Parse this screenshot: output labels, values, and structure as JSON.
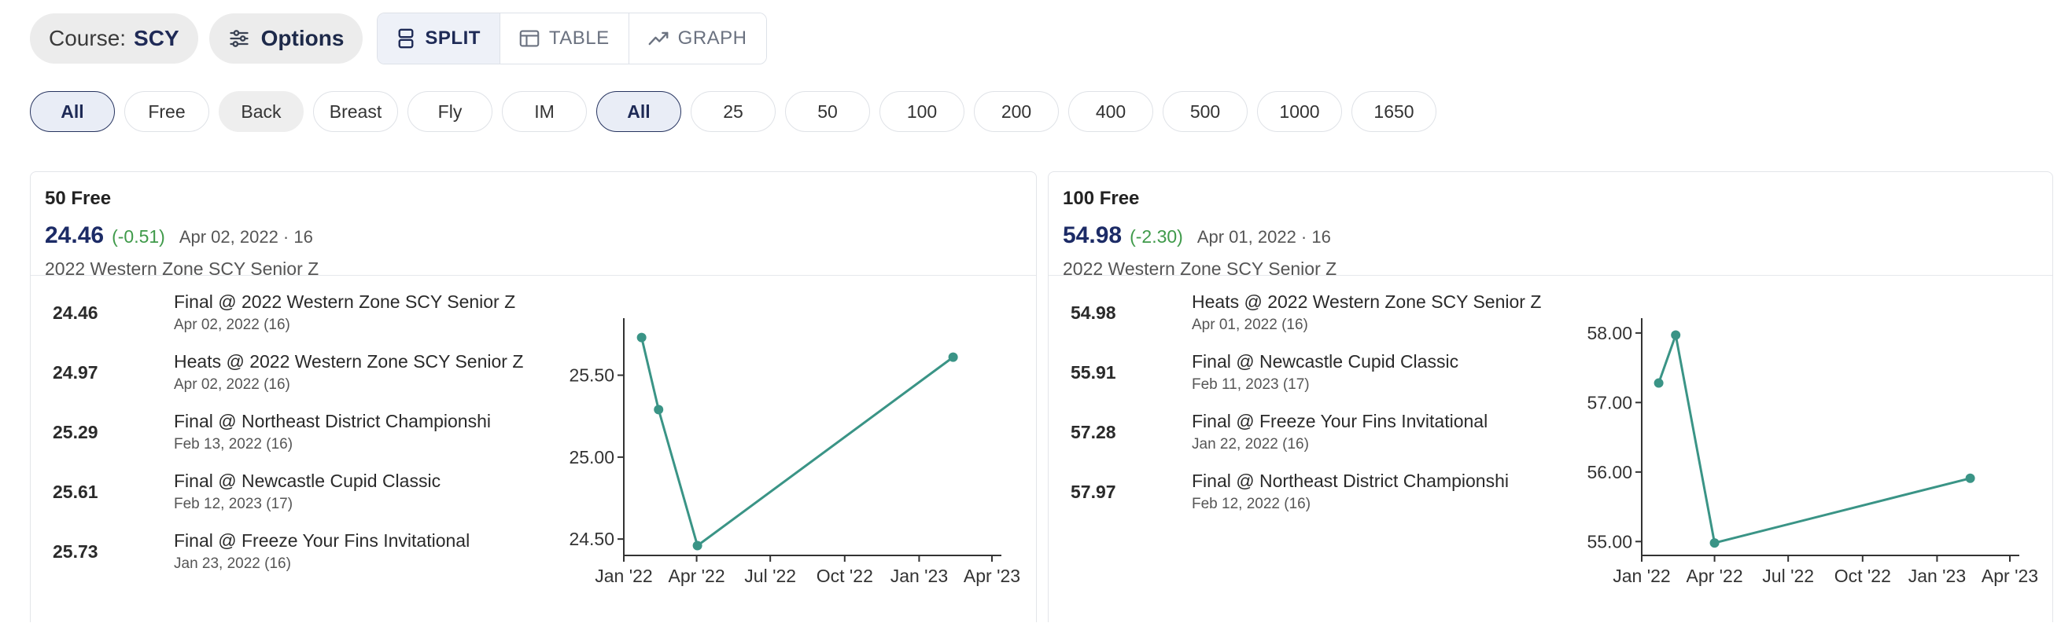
{
  "toolbar": {
    "course_prefix": "Course:",
    "course_value": "SCY",
    "options_label": "Options",
    "views": [
      {
        "label": "SPLIT",
        "icon": "split-view-icon",
        "active": true
      },
      {
        "label": "TABLE",
        "icon": "table-icon",
        "active": false
      },
      {
        "label": "GRAPH",
        "icon": "graph-icon",
        "active": false
      }
    ]
  },
  "stroke_filters": [
    {
      "label": "All",
      "active": true
    },
    {
      "label": "Free",
      "active": false
    },
    {
      "label": "Back",
      "active": false
    },
    {
      "label": "Breast",
      "active": false
    },
    {
      "label": "Fly",
      "active": false
    },
    {
      "label": "IM",
      "active": false
    }
  ],
  "distance_filters": [
    {
      "label": "All",
      "active": true
    },
    {
      "label": "25",
      "active": false
    },
    {
      "label": "50",
      "active": false
    },
    {
      "label": "100",
      "active": false
    },
    {
      "label": "200",
      "active": false
    },
    {
      "label": "400",
      "active": false
    },
    {
      "label": "500",
      "active": false
    },
    {
      "label": "1000",
      "active": false
    },
    {
      "label": "1650",
      "active": false
    }
  ],
  "cards": [
    {
      "event": "50 Free",
      "best_time": "24.46",
      "best_delta": "(-0.51)",
      "best_meta": "Apr 02, 2022 · 16",
      "best_meet": "2022 Western Zone SCY Senior Z",
      "swims": [
        {
          "time": "24.46",
          "event": "Final @ 2022 Western Zone SCY Senior Z",
          "date": "Apr 02, 2022 (16)"
        },
        {
          "time": "24.97",
          "event": "Heats @ 2022 Western Zone SCY Senior Z",
          "date": "Apr 02, 2022 (16)"
        },
        {
          "time": "25.29",
          "event": "Final @ Northeast District Championshi",
          "date": "Feb 13, 2022 (16)"
        },
        {
          "time": "25.61",
          "event": "Final @ Newcastle Cupid Classic",
          "date": "Feb 12, 2023 (17)"
        },
        {
          "time": "25.73",
          "event": "Final @ Freeze Your Fins Invitational",
          "date": "Jan 23, 2022 (16)"
        }
      ]
    },
    {
      "event": "100 Free",
      "best_time": "54.98",
      "best_delta": "(-2.30)",
      "best_meta": "Apr 01, 2022 · 16",
      "best_meet": "2022 Western Zone SCY Senior Z",
      "swims": [
        {
          "time": "54.98",
          "event": "Heats @ 2022 Western Zone SCY Senior Z",
          "date": "Apr 01, 2022 (16)"
        },
        {
          "time": "55.91",
          "event": "Final @ Newcastle Cupid Classic",
          "date": "Feb 11, 2023 (17)"
        },
        {
          "time": "57.28",
          "event": "Final @ Freeze Your Fins Invitational",
          "date": "Jan 22, 2022 (16)"
        },
        {
          "time": "57.97",
          "event": "Final @ Northeast District Championshi",
          "date": "Feb 12, 2022 (16)"
        }
      ]
    }
  ],
  "colors": {
    "line": "#3a9486",
    "accent": "#1c2b66",
    "delta": "#3f9a4a"
  },
  "chart_data": [
    {
      "type": "line",
      "title": "",
      "xlabel": "",
      "ylabel": "",
      "x_tick_labels": [
        "Jan '22",
        "Apr '22",
        "Jul '22",
        "Oct '22",
        "Jan '23",
        "Apr '23"
      ],
      "y_tick_labels": [
        "24.50",
        "25.00",
        "25.50"
      ],
      "y_ticks": [
        24.5,
        25.0,
        25.5
      ],
      "xlim": [
        "2022-01-01",
        "2023-04-01"
      ],
      "ylim": [
        24.4,
        25.8
      ],
      "series": [
        {
          "points": [
            {
              "x": "2022-01-23",
              "y": 25.73
            },
            {
              "x": "2022-02-13",
              "y": 25.29
            },
            {
              "x": "2022-04-02",
              "y": 24.46
            },
            {
              "x": "2023-02-12",
              "y": 25.61
            }
          ]
        }
      ],
      "grid": false
    },
    {
      "type": "line",
      "title": "",
      "xlabel": "",
      "ylabel": "",
      "x_tick_labels": [
        "Jan '22",
        "Apr '22",
        "Jul '22",
        "Oct '22",
        "Jan '23",
        "Apr '23"
      ],
      "y_tick_labels": [
        "55.00",
        "56.00",
        "57.00",
        "58.00"
      ],
      "y_ticks": [
        55,
        56,
        57,
        58
      ],
      "xlim": [
        "2022-01-01",
        "2023-04-01"
      ],
      "ylim": [
        54.8,
        58.1
      ],
      "series": [
        {
          "points": [
            {
              "x": "2022-01-22",
              "y": 57.28
            },
            {
              "x": "2022-02-12",
              "y": 57.97
            },
            {
              "x": "2022-04-01",
              "y": 54.98
            },
            {
              "x": "2023-02-11",
              "y": 55.91
            }
          ]
        }
      ],
      "grid": false
    }
  ]
}
